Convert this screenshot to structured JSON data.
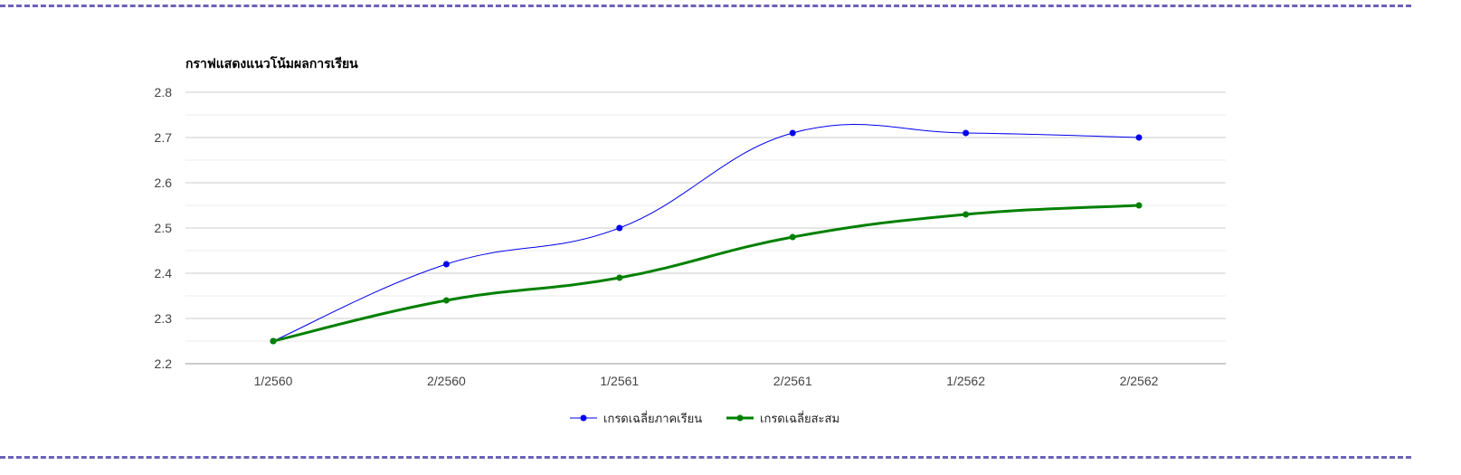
{
  "chart_data": {
    "type": "line",
    "title": "กราฟแสดงแนวโน้มผลการเรียน",
    "categories": [
      "1/2560",
      "2/2560",
      "1/2561",
      "2/2561",
      "1/2562",
      "2/2562"
    ],
    "ylim": [
      2.2,
      2.8
    ],
    "yticks": [
      "2.2",
      "2.3",
      "2.4",
      "2.5",
      "2.6",
      "2.7",
      "2.8"
    ],
    "grid": true,
    "legend_position": "bottom",
    "series": [
      {
        "name": "เกรดเฉลี่ยภาคเรียน",
        "values": [
          2.25,
          2.42,
          2.5,
          2.71,
          2.71,
          2.7
        ],
        "color": "#0000ee"
      },
      {
        "name": "เกรดเฉลี่ยสะสม",
        "values": [
          2.25,
          2.34,
          2.39,
          2.48,
          2.53,
          2.55
        ],
        "color": "#008000"
      }
    ]
  }
}
